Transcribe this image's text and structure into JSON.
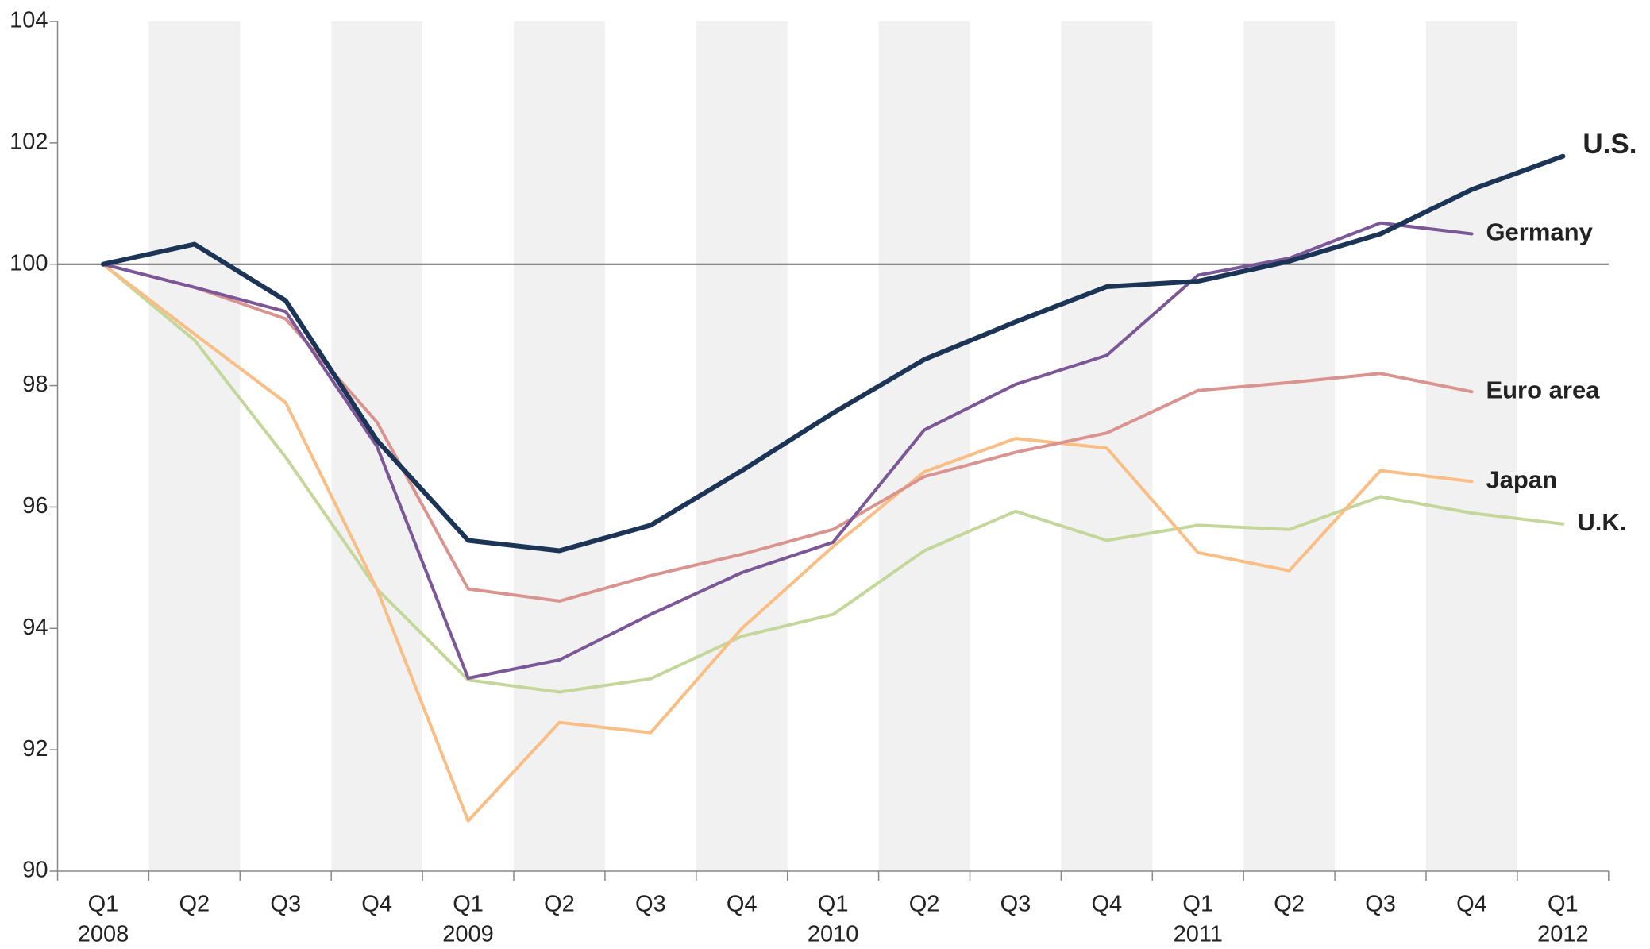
{
  "chart_data": {
    "type": "line",
    "categories": [
      "Q1",
      "Q2",
      "Q3",
      "Q4",
      "Q1",
      "Q2",
      "Q3",
      "Q4",
      "Q1",
      "Q2",
      "Q3",
      "Q4",
      "Q1",
      "Q2",
      "Q3",
      "Q4",
      "Q1"
    ],
    "category_years": [
      "2008",
      null,
      null,
      null,
      "2009",
      null,
      null,
      null,
      "2010",
      null,
      null,
      null,
      "2011",
      null,
      null,
      null,
      "2012"
    ],
    "ylim": [
      90,
      104
    ],
    "yticks": [
      90,
      92,
      94,
      96,
      98,
      100,
      102,
      104
    ],
    "reference_line": 100,
    "series": [
      {
        "name": "U.S.",
        "color": "#1c3557",
        "label_color": "#2e5182",
        "values": [
          100,
          100.33,
          99.4,
          97.1,
          95.45,
          95.28,
          95.7,
          96.6,
          97.55,
          98.43,
          99.05,
          99.63,
          99.72,
          100.05,
          100.5,
          101.23,
          101.78
        ]
      },
      {
        "name": "Germany",
        "color": "#7b5797",
        "label_color": "#7b5797",
        "values": [
          100,
          99.62,
          99.22,
          97.0,
          93.18,
          93.48,
          94.23,
          94.92,
          95.42,
          97.27,
          98.02,
          98.5,
          99.82,
          100.1,
          100.68,
          100.5,
          null
        ]
      },
      {
        "name": "Euro area",
        "color": "#d99490",
        "label_color": "#c0504d",
        "values": [
          100,
          99.62,
          99.1,
          97.4,
          94.65,
          94.45,
          94.87,
          95.22,
          95.63,
          96.5,
          96.9,
          97.22,
          97.92,
          98.05,
          98.2,
          97.9,
          null
        ]
      },
      {
        "name": "Japan",
        "color": "#f9be85",
        "label_color": "#f79646",
        "values": [
          100,
          98.85,
          97.72,
          94.65,
          90.83,
          92.45,
          92.28,
          94.0,
          95.35,
          96.58,
          97.13,
          96.97,
          95.25,
          94.95,
          96.6,
          96.42,
          null
        ]
      },
      {
        "name": "U.K.",
        "color": "#c4d79b",
        "label_color": "#9bbb59",
        "values": [
          100,
          98.75,
          96.82,
          94.65,
          93.15,
          92.95,
          93.17,
          93.87,
          94.23,
          95.28,
          95.93,
          95.45,
          95.7,
          95.63,
          96.17,
          95.9,
          95.72
        ]
      }
    ]
  }
}
